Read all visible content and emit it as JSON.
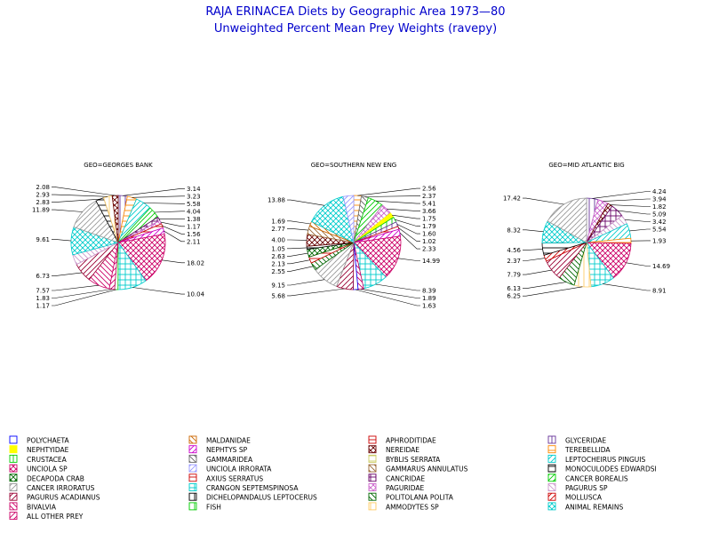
{
  "chart_data": {
    "type": "pie",
    "title": "RAJA ERINACEA Diets by Geographic Area 1973—80",
    "subtitle": "Unweighted Percent Mean Prey Weights (ravepy)",
    "legend": [
      {
        "name": "POLYCHAETA",
        "color": "#0000ff",
        "pattern": "empty"
      },
      {
        "name": "MALDANIDAE",
        "color": "#cc6600",
        "pattern": "diag-back"
      },
      {
        "name": "APHRODITIDAE",
        "color": "#cc0000",
        "pattern": "hline"
      },
      {
        "name": "GLYCERIDAE",
        "color": "#663399",
        "pattern": "vline"
      },
      {
        "name": "NEPHTYIDAE",
        "color": "#ffff00",
        "pattern": "solid"
      },
      {
        "name": "NEPHTYS SP",
        "color": "#cc00cc",
        "pattern": "diag-fwd"
      },
      {
        "name": "NEREIDAE",
        "color": "#660000",
        "pattern": "crossx"
      },
      {
        "name": "TEREBELLIDA",
        "color": "#ff8800",
        "pattern": "hline"
      },
      {
        "name": "CRUSTACEA",
        "color": "#00cc00",
        "pattern": "vline"
      },
      {
        "name": "GAMMARIDEA",
        "color": "#666666",
        "pattern": "diag-back"
      },
      {
        "name": "BYBLIS SERRATA",
        "color": "#cccc66",
        "pattern": "hline"
      },
      {
        "name": "LEPTOCHEIRUS PINGUIS",
        "color": "#00cccc",
        "pattern": "diag-fwd"
      },
      {
        "name": "UNCIOLA SP",
        "color": "#cc0066",
        "pattern": "crossx"
      },
      {
        "name": "UNCIOLA IRRORATA",
        "color": "#9999ff",
        "pattern": "diag-fwd"
      },
      {
        "name": "GAMMARUS ANNULATUS",
        "color": "#996633",
        "pattern": "diag-back"
      },
      {
        "name": "MONOCULODES EDWARDSI",
        "color": "#000000",
        "pattern": "hline"
      },
      {
        "name": "DECAPODA CRAB",
        "color": "#006600",
        "pattern": "crossx"
      },
      {
        "name": "AXIUS SERRATUS",
        "color": "#cc0000",
        "pattern": "hline"
      },
      {
        "name": "CANCRIDAE",
        "color": "#660066",
        "pattern": "grid"
      },
      {
        "name": "CANCER BOREALIS",
        "color": "#00cc00",
        "pattern": "diag-fwd"
      },
      {
        "name": "CANCER IRRORATUS",
        "color": "#999999",
        "pattern": "diag-fwd"
      },
      {
        "name": "CRANGON SEPTEMSPINOSA",
        "color": "#00cccc",
        "pattern": "grid"
      },
      {
        "name": "PAGURIDAE",
        "color": "#cc66cc",
        "pattern": "crossx"
      },
      {
        "name": "PAGURUS SP",
        "color": "#cc99cc",
        "pattern": "diag-back"
      },
      {
        "name": "PAGURUS ACADIANUS",
        "color": "#990033",
        "pattern": "diag-fwd"
      },
      {
        "name": "DICHELOPANDALUS LEPTOCERUS",
        "color": "#000000",
        "pattern": "vline"
      },
      {
        "name": "POLITOLANA POLITA",
        "color": "#006600",
        "pattern": "diag-back"
      },
      {
        "name": "MOLLUSCA",
        "color": "#cc0000",
        "pattern": "diag-fwd"
      },
      {
        "name": "BIVALVIA",
        "color": "#cc0066",
        "pattern": "diag-back"
      },
      {
        "name": "FISH",
        "color": "#00cc00",
        "pattern": "vline"
      },
      {
        "name": "AMMODYTES SP",
        "color": "#ffcc66",
        "pattern": "vline"
      },
      {
        "name": "ANIMAL REMAINS",
        "color": "#00cccc",
        "pattern": "crossx"
      },
      {
        "name": "ALL OTHER PREY",
        "color": "#cc0066",
        "pattern": "diag-fwd"
      }
    ],
    "pies": [
      {
        "title": "GEO=GEORGES BANK",
        "slices": [
          {
            "category": "GLYCERIDAE",
            "value": 3.14,
            "label": "3.14"
          },
          {
            "category": "TEREBELLIDA",
            "value": 3.23,
            "label": "3.23"
          },
          {
            "category": "LEPTOCHEIRUS PINGUIS",
            "value": 5.58,
            "label": "5.58"
          },
          {
            "category": "CANCER BOREALIS",
            "value": 4.04,
            "label": "4.04"
          },
          {
            "category": "CANCRIDAE",
            "value": 1.38,
            "label": "1.38"
          },
          {
            "category": "PAGURIDAE",
            "value": 1.17,
            "label": "1.17"
          },
          {
            "category": "AXIUS SERRATUS",
            "value": 1.56,
            "label": "1.56"
          },
          {
            "category": "NEPHTYS SP",
            "value": 2.11,
            "label": "2.11"
          },
          {
            "category": "UNCIOLA SP",
            "value": 18.02,
            "label": "18.02"
          },
          {
            "category": "CRANGON SEPTEMSPINOSA",
            "value": 10.04,
            "label": "10.04"
          },
          {
            "category": "FISH",
            "value": 1.17,
            "label": "1.17"
          },
          {
            "category": "ALL OTHER PREY",
            "value": 1.83,
            "label": "1.83"
          },
          {
            "category": "BIVALVIA",
            "value": 7.57,
            "label": "7.57"
          },
          {
            "category": "PAGURUS ACADIANUS",
            "value": 6.73,
            "label": "6.73"
          },
          {
            "category": "PAGURUS SP",
            "value": 3.5,
            "label": ""
          },
          {
            "category": "ANIMAL REMAINS",
            "value": 9.61,
            "label": "9.61"
          },
          {
            "category": "CANCER IRRORATUS",
            "value": 11.89,
            "label": "11.89"
          },
          {
            "category": "MONOCULODES EDWARDSI",
            "value": 2.83,
            "label": "2.83"
          },
          {
            "category": "AMMODYTES SP",
            "value": 2.93,
            "label": "2.93"
          },
          {
            "category": "NEREIDAE",
            "value": 2.08,
            "label": "2.08"
          }
        ]
      },
      {
        "title": "GEO=SOUTHERN NEW ENG",
        "slices": [
          {
            "category": "TEREBELLIDA",
            "value": 2.56,
            "label": "2.56"
          },
          {
            "category": "GAMMARIDEA",
            "value": 2.37,
            "label": "2.37"
          },
          {
            "category": "CANCER BOREALIS",
            "value": 5.41,
            "label": "5.41"
          },
          {
            "category": "PAGURIDAE",
            "value": 3.66,
            "label": "3.66"
          },
          {
            "category": "NEPHTYIDAE",
            "value": 1.75,
            "label": "1.75"
          },
          {
            "category": "CRUSTACEA",
            "value": 1.79,
            "label": "1.79"
          },
          {
            "category": "GLYCERIDAE",
            "value": 1.6,
            "label": "1.60"
          },
          {
            "category": "AXIUS SERRATUS",
            "value": 1.02,
            "label": "1.02"
          },
          {
            "category": "NEPHTYS SP",
            "value": 2.33,
            "label": "2.33"
          },
          {
            "category": "UNCIOLA SP",
            "value": 14.99,
            "label": "14.99"
          },
          {
            "category": "CRANGON SEPTEMSPINOSA",
            "value": 8.39,
            "label": "8.39"
          },
          {
            "category": "BIVALVIA",
            "value": 1.89,
            "label": "1.89"
          },
          {
            "category": "POLYCHAETA",
            "value": 1.63,
            "label": "1.63"
          },
          {
            "category": "PAGURUS ACADIANUS",
            "value": 5.68,
            "label": "5.68"
          },
          {
            "category": "CANCER IRRORATUS",
            "value": 9.15,
            "label": "9.15"
          },
          {
            "category": "POLITOLANA POLITA",
            "value": 2.55,
            "label": "2.55"
          },
          {
            "category": "APHRODITIDAE",
            "value": 2.13,
            "label": "2.13"
          },
          {
            "category": "DECAPODA CRAB",
            "value": 2.63,
            "label": "2.63"
          },
          {
            "category": "MONOCULODES EDWARDSI",
            "value": 1.05,
            "label": "1.05"
          },
          {
            "category": "NEREIDAE",
            "value": 4.0,
            "label": "4.00"
          },
          {
            "category": "GAMMARUS ANNULATUS",
            "value": 2.77,
            "label": "2.77"
          },
          {
            "category": "MALDANIDAE",
            "value": 1.69,
            "label": "1.69"
          },
          {
            "category": "ANIMAL REMAINS",
            "value": 13.88,
            "label": "13.88"
          },
          {
            "category": "UNCIOLA IRRORATA",
            "value": 3.5,
            "label": ""
          }
        ]
      },
      {
        "title": "GEO=MID ATLANTIC BIG",
        "slices": [
          {
            "category": "GLYCERIDAE",
            "value": 4.24,
            "label": "4.24"
          },
          {
            "category": "PAGURIDAE",
            "value": 3.94,
            "label": "3.94"
          },
          {
            "category": "NEREIDAE",
            "value": 1.82,
            "label": "1.82"
          },
          {
            "category": "CANCRIDAE",
            "value": 5.09,
            "label": "5.09"
          },
          {
            "category": "PAGURUS SP",
            "value": 3.42,
            "label": "3.42"
          },
          {
            "category": "LEPTOCHEIRUS PINGUIS",
            "value": 5.54,
            "label": "5.54"
          },
          {
            "category": "TEREBELLIDA",
            "value": 1.93,
            "label": "1.93"
          },
          {
            "category": "UNCIOLA SP",
            "value": 14.69,
            "label": "14.69"
          },
          {
            "category": "CRANGON SEPTEMSPINOSA",
            "value": 8.91,
            "label": "8.91"
          },
          {
            "category": "AMMODYTES SP",
            "value": 6.25,
            "label": "6.25"
          },
          {
            "category": "POLITOLANA POLITA",
            "value": 6.13,
            "label": "6.13"
          },
          {
            "category": "PAGURUS ACADIANUS",
            "value": 7.79,
            "label": "7.79"
          },
          {
            "category": "MOLLUSCA",
            "value": 2.37,
            "label": "2.37"
          },
          {
            "category": "MONOCULODES EDWARDSI",
            "value": 4.56,
            "label": "4.56"
          },
          {
            "category": "ANIMAL REMAINS",
            "value": 8.32,
            "label": "8.32"
          },
          {
            "category": "CANCER IRRORATUS",
            "value": 17.42,
            "label": "17.42"
          }
        ]
      }
    ]
  }
}
